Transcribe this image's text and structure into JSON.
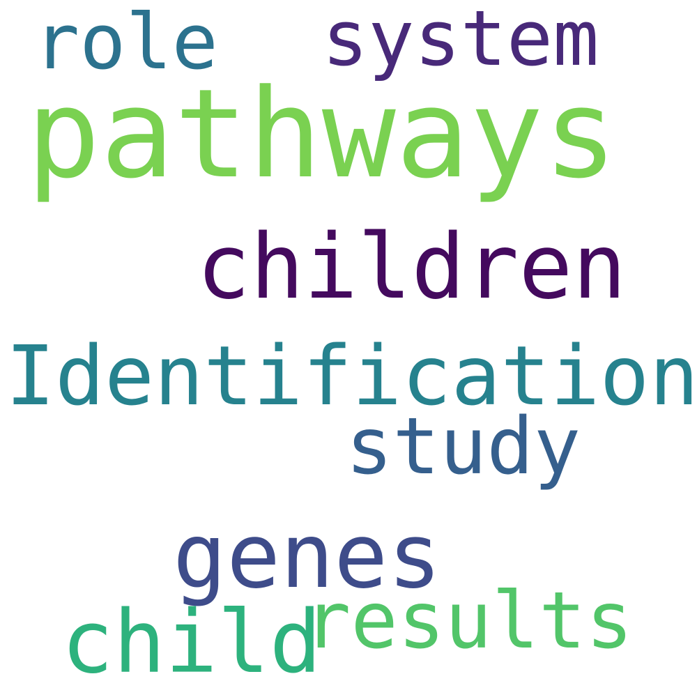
{
  "words": [
    {
      "id": "pathways",
      "text": "pathways",
      "color": "#7ad151"
    },
    {
      "id": "children",
      "text": "children",
      "color": "#440a5e"
    },
    {
      "id": "identification",
      "text": "Identification",
      "color": "#26828e"
    },
    {
      "id": "genes",
      "text": "genes",
      "color": "#3e4c8a"
    },
    {
      "id": "results",
      "text": "results",
      "color": "#52c569"
    },
    {
      "id": "child",
      "text": "child",
      "color": "#2db27d"
    },
    {
      "id": "study",
      "text": "study",
      "color": "#355f8d"
    },
    {
      "id": "system",
      "text": "system",
      "color": "#482979"
    },
    {
      "id": "role",
      "text": "role",
      "color": "#2c728e"
    }
  ]
}
